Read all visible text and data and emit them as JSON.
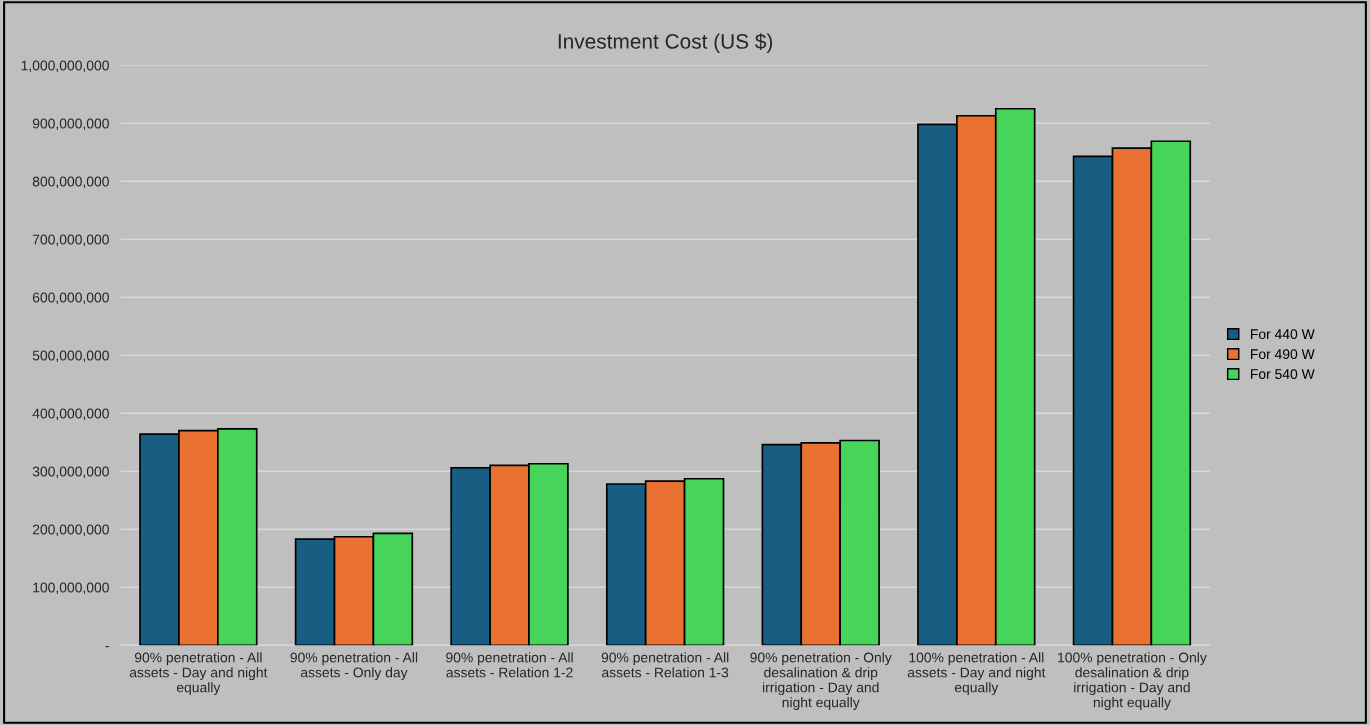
{
  "chart_data": {
    "type": "bar",
    "title": "Investment Cost (US $)",
    "categories": [
      "90% penetration - All assets - Day and night equally",
      "90% penetration - All assets - Only day",
      "90% penetration - All assets - Relation 1-2",
      "90% penetration - All assets - Relation 1-3",
      "90% penetration - Only desalination & drip irrigation - Day and night equally",
      "100% penetration - All assets - Day and night equally",
      "100% penetration - Only desalination & drip irrigation - Day and night equally"
    ],
    "series": [
      {
        "name": "For 440 W",
        "color": "#175e82",
        "values": [
          364000000,
          183000000,
          306000000,
          278000000,
          346000000,
          898000000,
          843000000
        ]
      },
      {
        "name": "For 490 W",
        "color": "#e97132",
        "values": [
          370000000,
          187000000,
          310000000,
          283000000,
          349000000,
          913000000,
          857000000
        ]
      },
      {
        "name": "For 540 W",
        "color": "#47d45a",
        "values": [
          373000000,
          193000000,
          313000000,
          287000000,
          353000000,
          925000000,
          869000000
        ]
      }
    ],
    "ylim": [
      0,
      1000000000
    ],
    "yticks": [
      {
        "value": 0,
        "label": "-"
      },
      {
        "value": 100000000,
        "label": "100,000,000"
      },
      {
        "value": 200000000,
        "label": "200,000,000"
      },
      {
        "value": 300000000,
        "label": "300,000,000"
      },
      {
        "value": 400000000,
        "label": "400,000,000"
      },
      {
        "value": 500000000,
        "label": "500,000,000"
      },
      {
        "value": 600000000,
        "label": "600,000,000"
      },
      {
        "value": 700000000,
        "label": "700,000,000"
      },
      {
        "value": 800000000,
        "label": "800,000,000"
      },
      {
        "value": 900000000,
        "label": "900,000,000"
      },
      {
        "value": 1000000000,
        "label": "1,000,000,000"
      }
    ],
    "grid": "y",
    "legend": "right"
  }
}
